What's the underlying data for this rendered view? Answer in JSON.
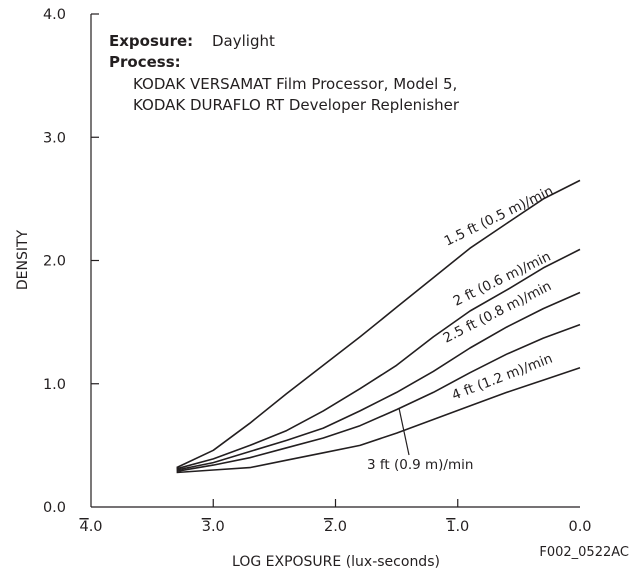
{
  "chart_data": {
    "type": "line",
    "xlabel": "LOG EXPOSURE (lux-seconds)",
    "ylabel": "DENSITY",
    "xlim": [
      -4.0,
      0.0
    ],
    "ylim": [
      0.0,
      4.0
    ],
    "x_ticks": [
      {
        "value": -4.0,
        "bar": "4",
        "rest": ".0"
      },
      {
        "value": -3.0,
        "bar": "3",
        "rest": ".0"
      },
      {
        "value": -2.0,
        "bar": "2",
        "rest": ".0"
      },
      {
        "value": -1.0,
        "bar": "1",
        "rest": ".0"
      },
      {
        "value": 0.0,
        "bar": "",
        "rest": "0.0"
      }
    ],
    "y_ticks": [
      "0.0",
      "1.0",
      "2.0",
      "3.0",
      "4.0"
    ],
    "y_tick_values": [
      0,
      1,
      2,
      3,
      4
    ],
    "grid": false,
    "series": [
      {
        "name": "1.5 ft (0.5 m)/min",
        "x": [
          -3.3,
          -3.0,
          -2.7,
          -2.4,
          -2.1,
          -1.8,
          -1.5,
          -1.2,
          -0.9,
          -0.6,
          -0.3,
          0.0
        ],
        "y": [
          0.32,
          0.46,
          0.68,
          0.92,
          1.15,
          1.38,
          1.62,
          1.86,
          2.1,
          2.3,
          2.5,
          2.65
        ]
      },
      {
        "name": "2 ft (0.6 m)/min",
        "x": [
          -3.3,
          -3.0,
          -2.7,
          -2.4,
          -2.1,
          -1.8,
          -1.5,
          -1.2,
          -0.9,
          -0.6,
          -0.3,
          0.0
        ],
        "y": [
          0.31,
          0.39,
          0.5,
          0.62,
          0.78,
          0.96,
          1.15,
          1.38,
          1.59,
          1.76,
          1.94,
          2.09
        ]
      },
      {
        "name": "2.5 ft (0.8 m)/min",
        "x": [
          -3.3,
          -3.0,
          -2.7,
          -2.4,
          -2.1,
          -1.8,
          -1.5,
          -1.2,
          -0.9,
          -0.6,
          -0.3,
          0.0
        ],
        "y": [
          0.3,
          0.36,
          0.45,
          0.54,
          0.64,
          0.78,
          0.93,
          1.1,
          1.29,
          1.46,
          1.61,
          1.74
        ]
      },
      {
        "name": "3 ft (0.9 m)/min",
        "x": [
          -3.3,
          -3.0,
          -2.7,
          -2.4,
          -2.1,
          -1.8,
          -1.5,
          -1.2,
          -0.9,
          -0.6,
          -0.3,
          0.0
        ],
        "y": [
          0.29,
          0.34,
          0.4,
          0.48,
          0.56,
          0.66,
          0.79,
          0.93,
          1.09,
          1.24,
          1.37,
          1.48
        ]
      },
      {
        "name": "4 ft (1.2 m)/min",
        "x": [
          -3.3,
          -3.0,
          -2.7,
          -2.4,
          -2.1,
          -1.8,
          -1.5,
          -1.2,
          -0.9,
          -0.6,
          -0.3,
          0.0
        ],
        "y": [
          0.28,
          0.3,
          0.32,
          0.38,
          0.44,
          0.5,
          0.6,
          0.71,
          0.82,
          0.93,
          1.03,
          1.13
        ]
      }
    ],
    "annotations": {
      "exposure_label": "Exposure:",
      "exposure_value": "Daylight",
      "process_label": "Process:",
      "process_lines": [
        "KODAK VERSAMAT Film Processor, Model 5,",
        "KODAK DURAFLO RT Developer Replenisher"
      ]
    },
    "figure_id": "F002_0522AC"
  }
}
